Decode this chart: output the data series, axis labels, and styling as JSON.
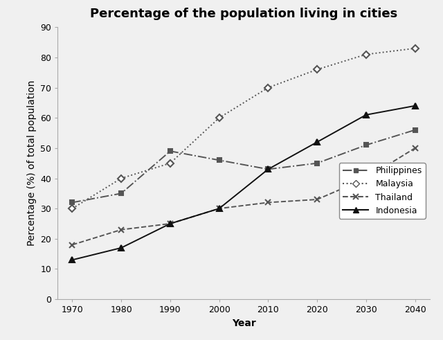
{
  "title": "Percentage of the population living in cities",
  "xlabel": "Year",
  "ylabel": "Percentage (%) of total population",
  "years": [
    1970,
    1980,
    1990,
    2000,
    2010,
    2020,
    2030,
    2040
  ],
  "series": {
    "Philippines": [
      32,
      35,
      49,
      46,
      43,
      45,
      51,
      56
    ],
    "Malaysia": [
      30,
      40,
      45,
      60,
      70,
      76,
      81,
      83
    ],
    "Thailand": [
      18,
      23,
      25,
      30,
      32,
      33,
      40,
      50
    ],
    "Indonesia": [
      13,
      17,
      25,
      30,
      43,
      52,
      61,
      64
    ]
  },
  "styles": {
    "Philippines": {
      "color": "#555555",
      "linestyle": "-.",
      "marker": "s",
      "markersize": 5
    },
    "Malaysia": {
      "color": "#555555",
      "linestyle": ":",
      "marker": "D",
      "markersize": 5
    },
    "Thailand": {
      "color": "#555555",
      "linestyle": "--",
      "marker": "x",
      "markersize": 6
    },
    "Indonesia": {
      "color": "#111111",
      "linestyle": "-",
      "marker": "^",
      "markersize": 6
    }
  },
  "ylim": [
    0,
    90
  ],
  "yticks": [
    0,
    10,
    20,
    30,
    40,
    50,
    60,
    70,
    80,
    90
  ],
  "background_color": "#f0f0f0",
  "title_fontsize": 13,
  "axis_label_fontsize": 10,
  "tick_fontsize": 9,
  "legend_fontsize": 9
}
